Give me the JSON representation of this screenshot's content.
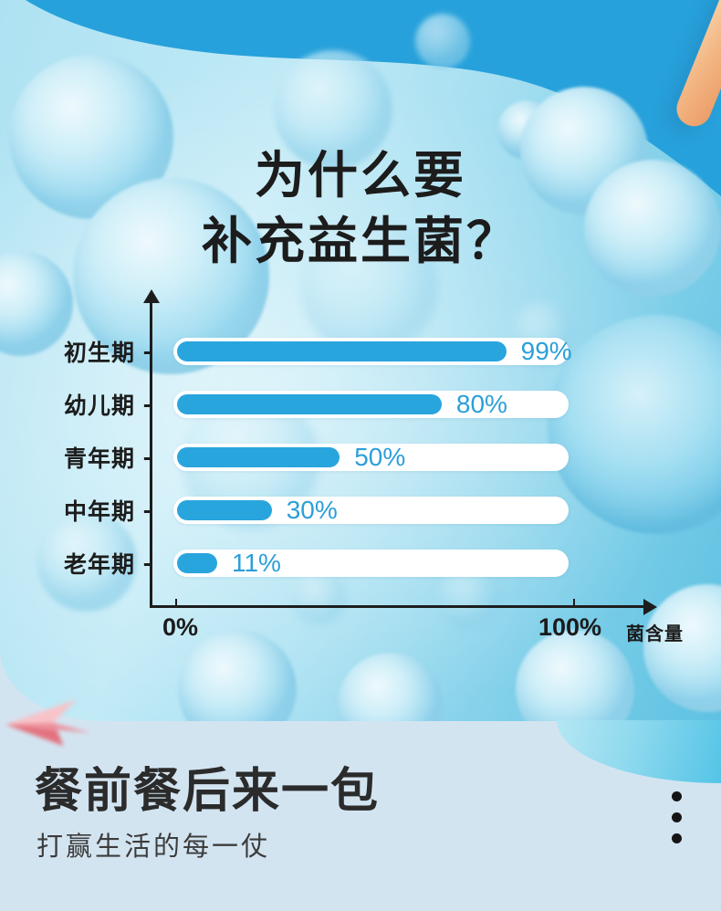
{
  "hero": {
    "title_line1": "为什么要",
    "title_line2": "补充益生菌？"
  },
  "chart_data": {
    "type": "bar",
    "orientation": "horizontal",
    "categories": [
      "初生期",
      "幼儿期",
      "青年期",
      "中年期",
      "老年期"
    ],
    "values": [
      99,
      80,
      50,
      30,
      11
    ],
    "value_labels": [
      "99%",
      "80%",
      "50%",
      "30%",
      "11%"
    ],
    "dash": "-",
    "x_axis": {
      "ticks": [
        "0%",
        "100%"
      ],
      "label": "菌含量",
      "range": [
        0,
        100
      ]
    },
    "legend": "none",
    "grid": "off",
    "colors": {
      "bar": "#29a5de",
      "track": "#ffffff",
      "value_text": "#2b9fd9",
      "axis": "#1d1d1d"
    }
  },
  "footer": {
    "headline": "餐前餐后来一包",
    "subtitle": "打赢生活的每一仗"
  },
  "palette": {
    "hero_band_blue": "#27a1db",
    "panel_background": "#d3e4f1",
    "title_text": "#1c1c1c",
    "stick_orange": "#f3b886",
    "plane_pink": "#e4717e"
  }
}
